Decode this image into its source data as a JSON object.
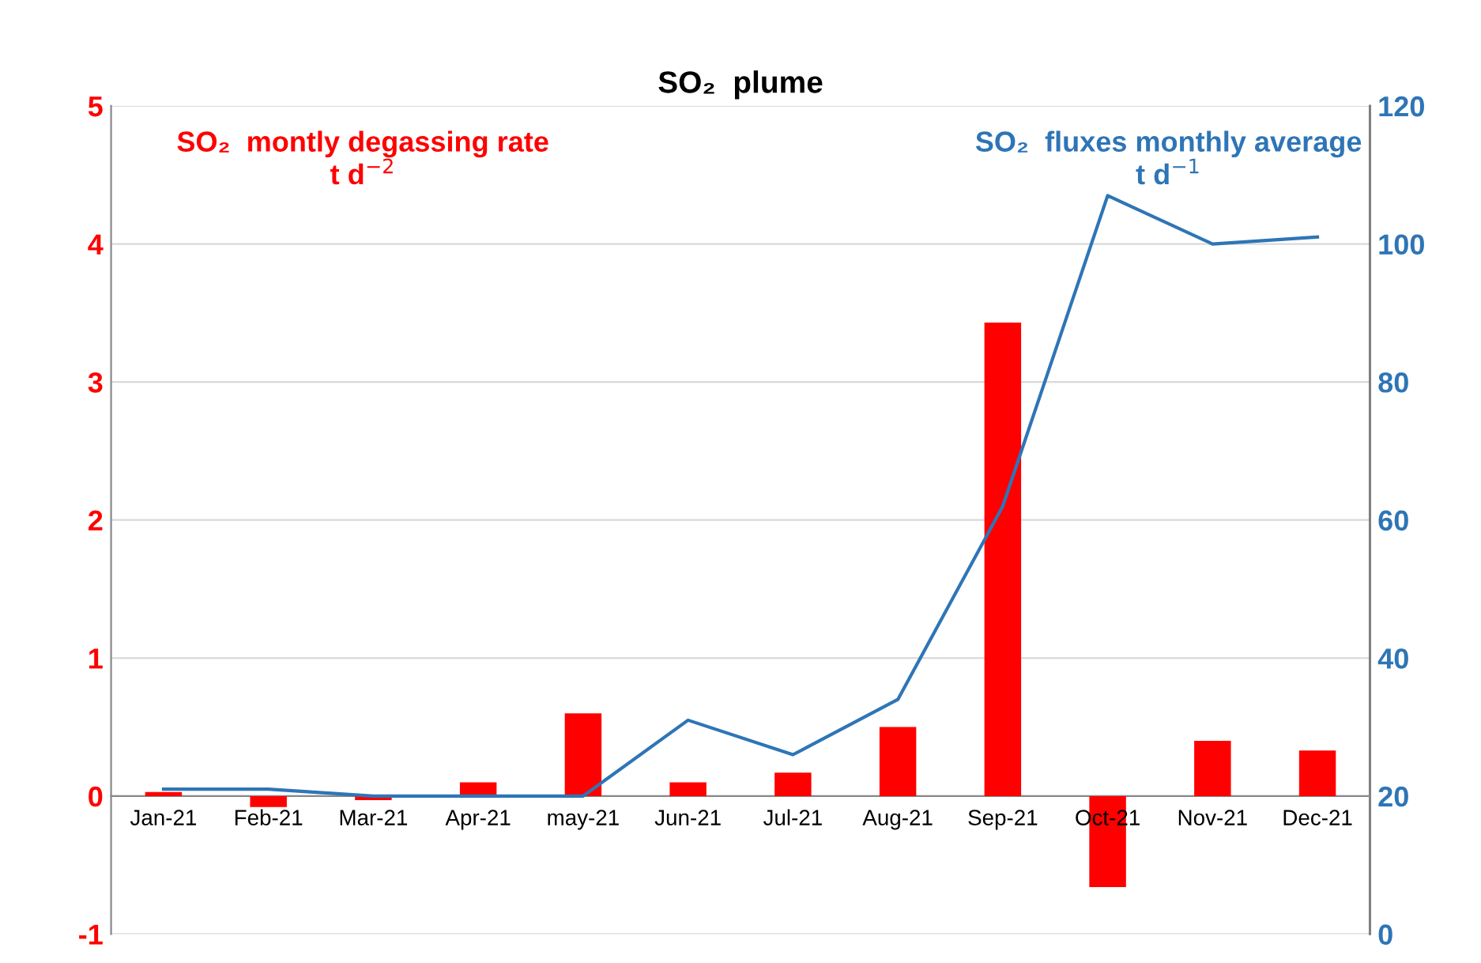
{
  "chart_data": {
    "type": "bar",
    "title": "SO₂  plume",
    "categories": [
      "Jan-21",
      "Feb-21",
      "Mar-21",
      "Apr-21",
      "may-21",
      "Jun-21",
      "Jul-21",
      "Aug-21",
      "Sep-21",
      "Oct-21",
      "Nov-21",
      "Dec-21"
    ],
    "series": [
      {
        "color": "#ff0000",
        "values": [
          0.03,
          -0.08,
          -0.03,
          0.1,
          0.6,
          0.1,
          0.17,
          0.5,
          3.43,
          -0.66,
          0.4,
          0.33
        ]
      },
      {
        "type": "line",
        "axis": "y2",
        "color": "#2e75b6",
        "values": [
          21,
          21,
          20,
          20,
          20,
          31,
          26,
          34,
          62,
          107,
          100,
          101
        ]
      }
    ],
    "annotations": [
      "SO₂  montly degassing rate\nt d$^{−2}$",
      "SO₂  fluxes monthly average\nt d$^{−1}$"
    ],
    "ylim": [
      -1,
      5
    ],
    "yticks": [
      -1,
      0,
      1,
      2,
      3,
      4,
      5
    ],
    "y2lim": [
      0,
      120
    ],
    "y2ticks": [
      0,
      20,
      40,
      60,
      80,
      100,
      120
    ],
    "grid": "y",
    "legend": false,
    "marker": "none",
    "line_style": "solid"
  }
}
